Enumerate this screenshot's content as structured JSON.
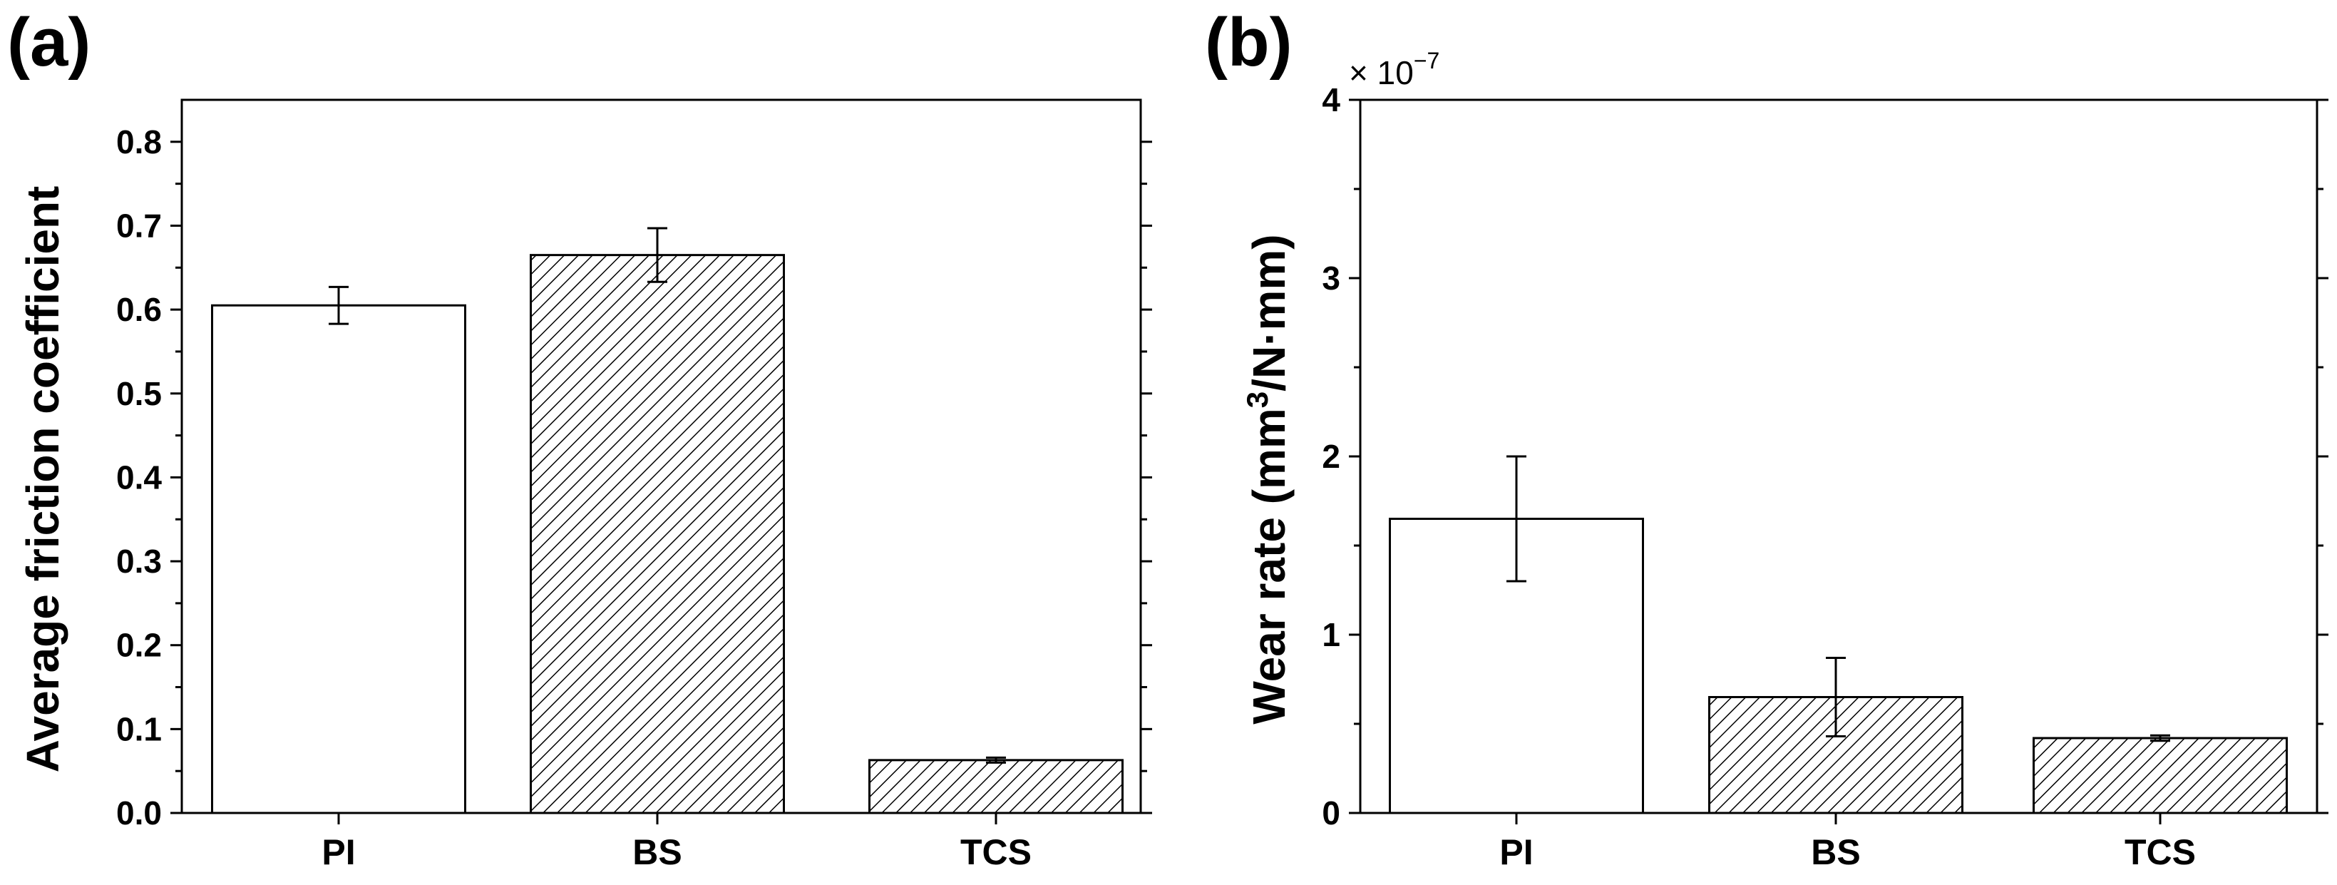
{
  "figure": {
    "panels": [
      "(a)",
      "(b)"
    ]
  },
  "chart_data": [
    {
      "panel_label": "(a)",
      "type": "bar",
      "categories": [
        "PI",
        "BS",
        "TCS"
      ],
      "values": [
        0.605,
        0.665,
        0.063
      ],
      "errors": [
        0.022,
        0.032,
        0.003
      ],
      "patterns": [
        "none",
        "hatch",
        "hatch"
      ],
      "xlabel": "",
      "ylabel": "Average friction coefficient",
      "ylim": [
        0,
        0.85
      ],
      "yticks": [
        0.0,
        0.1,
        0.2,
        0.3,
        0.4,
        0.5,
        0.6,
        0.7,
        0.8
      ],
      "ytick_labels": [
        "0.0",
        "0.1",
        "0.2",
        "0.3",
        "0.4",
        "0.5",
        "0.6",
        "0.7",
        "0.8"
      ],
      "grid": false
    },
    {
      "panel_label": "(b)",
      "type": "bar",
      "categories": [
        "PI",
        "BS",
        "TCS"
      ],
      "values": [
        1.65,
        0.65,
        0.42
      ],
      "errors": [
        0.35,
        0.22,
        0.015
      ],
      "patterns": [
        "none",
        "hatch",
        "hatch"
      ],
      "xlabel": "",
      "ylabel": "Wear rate (mm",
      "ylabel_superscript": "3",
      "ylabel_suffix": "/N·mm)",
      "multiplier_prefix": "× 10",
      "multiplier_exponent": "−7",
      "ylim": [
        0,
        4
      ],
      "yticks": [
        0,
        1,
        2,
        3,
        4
      ],
      "ytick_labels": [
        "0",
        "1",
        "2",
        "3",
        "4"
      ],
      "grid": false
    }
  ]
}
